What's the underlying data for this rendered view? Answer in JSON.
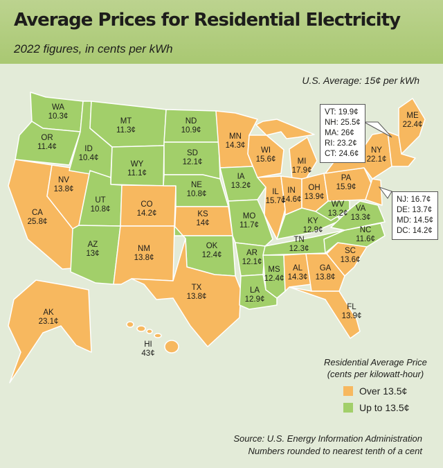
{
  "title": "Average Prices for Residential Electricity",
  "subtitle": "2022 figures, in cents per kWh",
  "us_average": "U.S. Average: 15¢ per kWh",
  "colors": {
    "over": "#f7b85f",
    "under": "#a2cf6a",
    "header": "#b3cd80",
    "background": "#e3ebd8"
  },
  "states": {
    "WA": {
      "code": "WA",
      "price": "10.3¢",
      "value": 10.3
    },
    "OR": {
      "code": "OR",
      "price": "11.4¢",
      "value": 11.4
    },
    "CA": {
      "code": "CA",
      "price": "25.8¢",
      "value": 25.8
    },
    "NV": {
      "code": "NV",
      "price": "13.8¢",
      "value": 13.8
    },
    "ID": {
      "code": "ID",
      "price": "10.4¢",
      "value": 10.4
    },
    "MT": {
      "code": "MT",
      "price": "11.3¢",
      "value": 11.3
    },
    "WY": {
      "code": "WY",
      "price": "11.1¢",
      "value": 11.1
    },
    "UT": {
      "code": "UT",
      "price": "10.8¢",
      "value": 10.8
    },
    "AZ": {
      "code": "AZ",
      "price": "13¢",
      "value": 13.0
    },
    "CO": {
      "code": "CO",
      "price": "14.2¢",
      "value": 14.2
    },
    "NM": {
      "code": "NM",
      "price": "13.8¢",
      "value": 13.8
    },
    "ND": {
      "code": "ND",
      "price": "10.9¢",
      "value": 10.9
    },
    "SD": {
      "code": "SD",
      "price": "12.1¢",
      "value": 12.1
    },
    "NE": {
      "code": "NE",
      "price": "10.8¢",
      "value": 10.8
    },
    "KS": {
      "code": "KS",
      "price": "14¢",
      "value": 14.0
    },
    "OK": {
      "code": "OK",
      "price": "12.4¢",
      "value": 12.4
    },
    "TX": {
      "code": "TX",
      "price": "13.8¢",
      "value": 13.8
    },
    "MN": {
      "code": "MN",
      "price": "14.3¢",
      "value": 14.3
    },
    "IA": {
      "code": "IA",
      "price": "13.2¢",
      "value": 13.2
    },
    "MO": {
      "code": "MO",
      "price": "11.7¢",
      "value": 11.7
    },
    "AR": {
      "code": "AR",
      "price": "12.1¢",
      "value": 12.1
    },
    "LA": {
      "code": "LA",
      "price": "12.9¢",
      "value": 12.9
    },
    "WI": {
      "code": "WI",
      "price": "15.6¢",
      "value": 15.6
    },
    "IL": {
      "code": "IL",
      "price": "15.7¢",
      "value": 15.7
    },
    "MI": {
      "code": "MI",
      "price": "17.9¢",
      "value": 17.9
    },
    "IN": {
      "code": "IN",
      "price": "14.6¢",
      "value": 14.6
    },
    "OH": {
      "code": "OH",
      "price": "13.9¢",
      "value": 13.9
    },
    "KY": {
      "code": "KY",
      "price": "12.9¢",
      "value": 12.9
    },
    "TN": {
      "code": "TN",
      "price": "12.3¢",
      "value": 12.3
    },
    "MS": {
      "code": "MS",
      "price": "12.4¢",
      "value": 12.4
    },
    "AL": {
      "code": "AL",
      "price": "14.3¢",
      "value": 14.3
    },
    "GA": {
      "code": "GA",
      "price": "13.8¢",
      "value": 13.8
    },
    "FL": {
      "code": "FL",
      "price": "13.9¢",
      "value": 13.9
    },
    "SC": {
      "code": "SC",
      "price": "13.6¢",
      "value": 13.6
    },
    "NC": {
      "code": "NC",
      "price": "11.6¢",
      "value": 11.6
    },
    "VA": {
      "code": "VA",
      "price": "13.3¢",
      "value": 13.3
    },
    "WV": {
      "code": "WV",
      "price": "13.2¢",
      "value": 13.2
    },
    "PA": {
      "code": "PA",
      "price": "15.9¢",
      "value": 15.9
    },
    "NY": {
      "code": "NY",
      "price": "22.1¢",
      "value": 22.1
    },
    "ME": {
      "code": "ME",
      "price": "22.4¢",
      "value": 22.4
    },
    "AK": {
      "code": "AK",
      "price": "23.1¢",
      "value": 23.1
    },
    "HI": {
      "code": "HI",
      "price": "43¢",
      "value": 43.0
    }
  },
  "new_england_callout": [
    "VT: 19.9¢",
    "NH: 25.5¢",
    "MA: 26¢",
    "RI: 23.2¢",
    "CT: 24.6¢"
  ],
  "mid_atlantic_callout": [
    "NJ: 16.7¢",
    "DE: 13.7¢",
    "MD: 14.5¢",
    "DC: 14.2¢"
  ],
  "legend": {
    "title_line1": "Residential Average Price",
    "title_line2": "(cents per kilowatt-hour)",
    "over_label": "Over 13.5¢",
    "under_label": "Up to 13.5¢"
  },
  "source_line1": "Source: U.S. Energy Information Administration",
  "source_line2": "Numbers rounded to nearest tenth of a cent"
}
